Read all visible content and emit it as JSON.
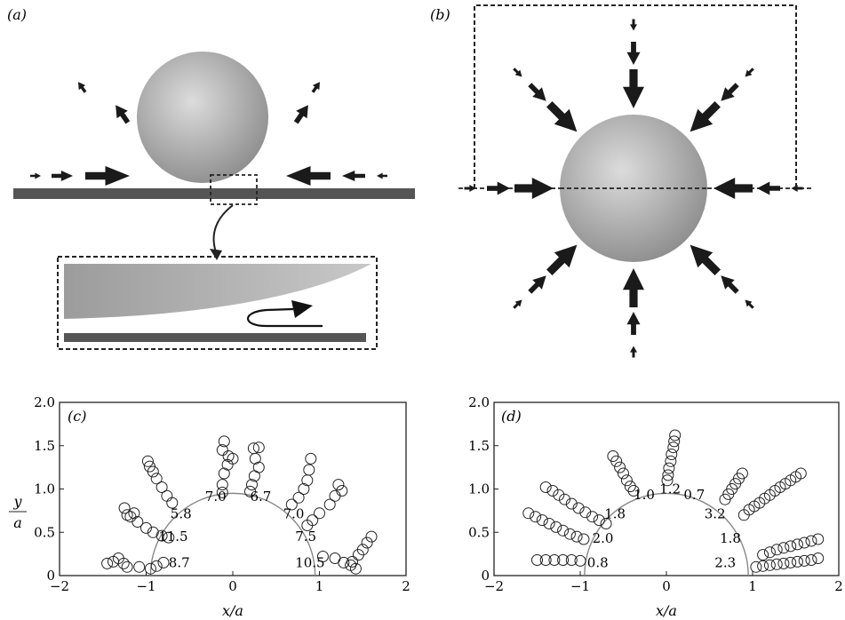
{
  "panels": {
    "a": {
      "label": "(a)"
    },
    "b": {
      "label": "(b)"
    },
    "c": {
      "label": "(c)"
    },
    "d": {
      "label": "(d)"
    }
  },
  "colors": {
    "sphere_light": "#d8d8d8",
    "sphere_dark": "#8e8e8e",
    "wall": "#555555",
    "arrow": "#1a1a1a",
    "marker": "#222222",
    "circle": "#888888"
  },
  "icons": {
    "flow_arrows": "black-arrow-icon",
    "zoom_box": "dashed-rectangle-icon"
  },
  "chart_data": [
    {
      "type": "scatter",
      "panel": "(c)",
      "xlabel": "x/a",
      "ylabel": "y/a",
      "xlim": [
        -2,
        2
      ],
      "ylim": [
        0,
        2.0
      ],
      "xticks": [
        "−2",
        "−1",
        "0",
        "1",
        "2"
      ],
      "yticks": [
        "0",
        "0.5",
        "1.0",
        "1.5",
        "2.0"
      ],
      "circle_radius": 0.95,
      "annotations": [
        {
          "text": "5.8",
          "x": -0.72,
          "y": 0.66
        },
        {
          "text": "7.0",
          "x": -0.32,
          "y": 0.86
        },
        {
          "text": "6.7",
          "x": 0.2,
          "y": 0.86
        },
        {
          "text": "7.0",
          "x": 0.58,
          "y": 0.66
        },
        {
          "text": "11.5",
          "x": -0.86,
          "y": 0.4
        },
        {
          "text": "7.5",
          "x": 0.72,
          "y": 0.4
        },
        {
          "text": "8.7",
          "x": -0.74,
          "y": 0.1
        },
        {
          "text": "10.5",
          "x": 0.72,
          "y": 0.1
        }
      ],
      "series": [
        {
          "values": [
            [
              -1.45,
              0.14
            ],
            [
              -1.38,
              0.16
            ],
            [
              -1.32,
              0.2
            ],
            [
              -1.26,
              0.14
            ],
            [
              -1.22,
              0.1
            ],
            [
              -1.08,
              0.1
            ],
            [
              -0.95,
              0.08
            ],
            [
              -0.88,
              0.11
            ],
            [
              -0.8,
              0.15
            ]
          ]
        },
        {
          "values": [
            [
              -1.25,
              0.78
            ],
            [
              -1.22,
              0.7
            ],
            [
              -1.18,
              0.68
            ],
            [
              -1.14,
              0.72
            ],
            [
              -1.1,
              0.62
            ],
            [
              -1.0,
              0.55
            ],
            [
              -0.92,
              0.5
            ],
            [
              -0.82,
              0.46
            ],
            [
              -0.74,
              0.44
            ]
          ]
        },
        {
          "values": [
            [
              -0.98,
              1.32
            ],
            [
              -0.96,
              1.26
            ],
            [
              -0.92,
              1.2
            ],
            [
              -0.88,
              1.12
            ],
            [
              -0.82,
              1.02
            ],
            [
              -0.76,
              0.92
            ],
            [
              -0.7,
              0.84
            ]
          ]
        },
        {
          "values": [
            [
              -0.1,
              1.55
            ],
            [
              -0.12,
              1.45
            ],
            [
              -0.05,
              1.38
            ],
            [
              0.0,
              1.35
            ],
            [
              -0.06,
              1.28
            ],
            [
              -0.1,
              1.18
            ],
            [
              -0.12,
              1.05
            ],
            [
              -0.12,
              0.96
            ]
          ]
        },
        {
          "values": [
            [
              0.24,
              1.47
            ],
            [
              0.3,
              1.48
            ],
            [
              0.26,
              1.35
            ],
            [
              0.3,
              1.25
            ],
            [
              0.25,
              1.15
            ],
            [
              0.22,
              1.05
            ],
            [
              0.2,
              0.97
            ]
          ]
        },
        {
          "values": [
            [
              0.9,
              1.35
            ],
            [
              0.88,
              1.22
            ],
            [
              0.86,
              1.1
            ],
            [
              0.82,
              1.0
            ],
            [
              0.76,
              0.9
            ],
            [
              0.68,
              0.82
            ]
          ]
        },
        {
          "values": [
            [
              1.22,
              1.05
            ],
            [
              1.26,
              0.98
            ],
            [
              1.18,
              0.92
            ],
            [
              1.12,
              0.82
            ],
            [
              1.0,
              0.72
            ],
            [
              0.92,
              0.64
            ],
            [
              0.86,
              0.58
            ]
          ]
        },
        {
          "values": [
            [
              1.6,
              0.45
            ],
            [
              1.55,
              0.38
            ],
            [
              1.5,
              0.3
            ],
            [
              1.45,
              0.24
            ],
            [
              1.38,
              0.16
            ],
            [
              1.42,
              0.08
            ],
            [
              1.36,
              0.12
            ],
            [
              1.28,
              0.15
            ],
            [
              1.18,
              0.2
            ],
            [
              1.04,
              0.22
            ]
          ]
        }
      ]
    },
    {
      "type": "scatter",
      "panel": "(d)",
      "xlabel": "x/a",
      "ylabel": "",
      "xlim": [
        -2,
        2
      ],
      "ylim": [
        0,
        2.0
      ],
      "xticks": [
        "−2",
        "−1",
        "0",
        "1",
        "2"
      ],
      "yticks": [
        "0",
        "0.5",
        "1.0",
        "1.5",
        "2.0"
      ],
      "circle_radius": 0.95,
      "annotations": [
        {
          "text": "1.0",
          "x": -0.38,
          "y": 0.88
        },
        {
          "text": "1.2",
          "x": -0.08,
          "y": 0.95
        },
        {
          "text": "0.7",
          "x": 0.2,
          "y": 0.88
        },
        {
          "text": "1.8",
          "x": -0.72,
          "y": 0.66
        },
        {
          "text": "3.2",
          "x": 0.44,
          "y": 0.66
        },
        {
          "text": "2.0",
          "x": -0.86,
          "y": 0.38
        },
        {
          "text": "1.8",
          "x": 0.62,
          "y": 0.38
        },
        {
          "text": "0.8",
          "x": -0.92,
          "y": 0.1
        },
        {
          "text": "2.3",
          "x": 0.56,
          "y": 0.1
        }
      ],
      "series": [
        {
          "values": [
            [
              -1.5,
              0.18
            ],
            [
              -1.4,
              0.18
            ],
            [
              -1.3,
              0.18
            ],
            [
              -1.2,
              0.18
            ],
            [
              -1.1,
              0.18
            ],
            [
              -1.0,
              0.17
            ]
          ]
        },
        {
          "values": [
            [
              -1.6,
              0.72
            ],
            [
              -1.52,
              0.68
            ],
            [
              -1.44,
              0.64
            ],
            [
              -1.36,
              0.6
            ],
            [
              -1.28,
              0.56
            ],
            [
              -1.2,
              0.52
            ],
            [
              -1.12,
              0.48
            ],
            [
              -1.04,
              0.45
            ],
            [
              -0.96,
              0.42
            ]
          ]
        },
        {
          "values": [
            [
              -1.4,
              1.02
            ],
            [
              -1.32,
              0.98
            ],
            [
              -1.25,
              0.93
            ],
            [
              -1.18,
              0.88
            ],
            [
              -1.1,
              0.83
            ],
            [
              -1.02,
              0.78
            ],
            [
              -0.94,
              0.73
            ],
            [
              -0.86,
              0.68
            ],
            [
              -0.78,
              0.64
            ],
            [
              -0.7,
              0.6
            ]
          ]
        },
        {
          "values": [
            [
              -0.62,
              1.38
            ],
            [
              -0.58,
              1.32
            ],
            [
              -0.54,
              1.25
            ],
            [
              -0.5,
              1.18
            ],
            [
              -0.46,
              1.1
            ],
            [
              -0.42,
              1.03
            ],
            [
              -0.38,
              0.98
            ]
          ]
        },
        {
          "values": [
            [
              0.1,
              1.62
            ],
            [
              0.09,
              1.55
            ],
            [
              0.08,
              1.48
            ],
            [
              0.06,
              1.4
            ],
            [
              0.05,
              1.32
            ],
            [
              0.03,
              1.24
            ],
            [
              0.02,
              1.16
            ],
            [
              0.01,
              1.1
            ]
          ]
        },
        {
          "values": [
            [
              0.88,
              1.18
            ],
            [
              0.84,
              1.12
            ],
            [
              0.8,
              1.06
            ],
            [
              0.76,
              1.0
            ],
            [
              0.72,
              0.94
            ],
            [
              0.68,
              0.88
            ]
          ]
        },
        {
          "values": [
            [
              1.56,
              1.18
            ],
            [
              1.5,
              1.14
            ],
            [
              1.44,
              1.1
            ],
            [
              1.38,
              1.06
            ],
            [
              1.32,
              1.02
            ],
            [
              1.26,
              0.98
            ],
            [
              1.2,
              0.93
            ],
            [
              1.14,
              0.89
            ],
            [
              1.08,
              0.84
            ],
            [
              1.02,
              0.8
            ],
            [
              0.96,
              0.76
            ],
            [
              0.9,
              0.7
            ]
          ]
        },
        {
          "values": [
            [
              1.76,
              0.42
            ],
            [
              1.68,
              0.4
            ],
            [
              1.6,
              0.38
            ],
            [
              1.52,
              0.36
            ],
            [
              1.44,
              0.34
            ],
            [
              1.36,
              0.32
            ],
            [
              1.28,
              0.3
            ],
            [
              1.2,
              0.27
            ],
            [
              1.12,
              0.24
            ]
          ]
        },
        {
          "values": [
            [
              1.76,
              0.2
            ],
            [
              1.68,
              0.18
            ],
            [
              1.6,
              0.17
            ],
            [
              1.52,
              0.16
            ],
            [
              1.44,
              0.15
            ],
            [
              1.36,
              0.14
            ],
            [
              1.28,
              0.13
            ],
            [
              1.2,
              0.12
            ],
            [
              1.12,
              0.11
            ],
            [
              1.04,
              0.1
            ]
          ]
        }
      ]
    }
  ]
}
